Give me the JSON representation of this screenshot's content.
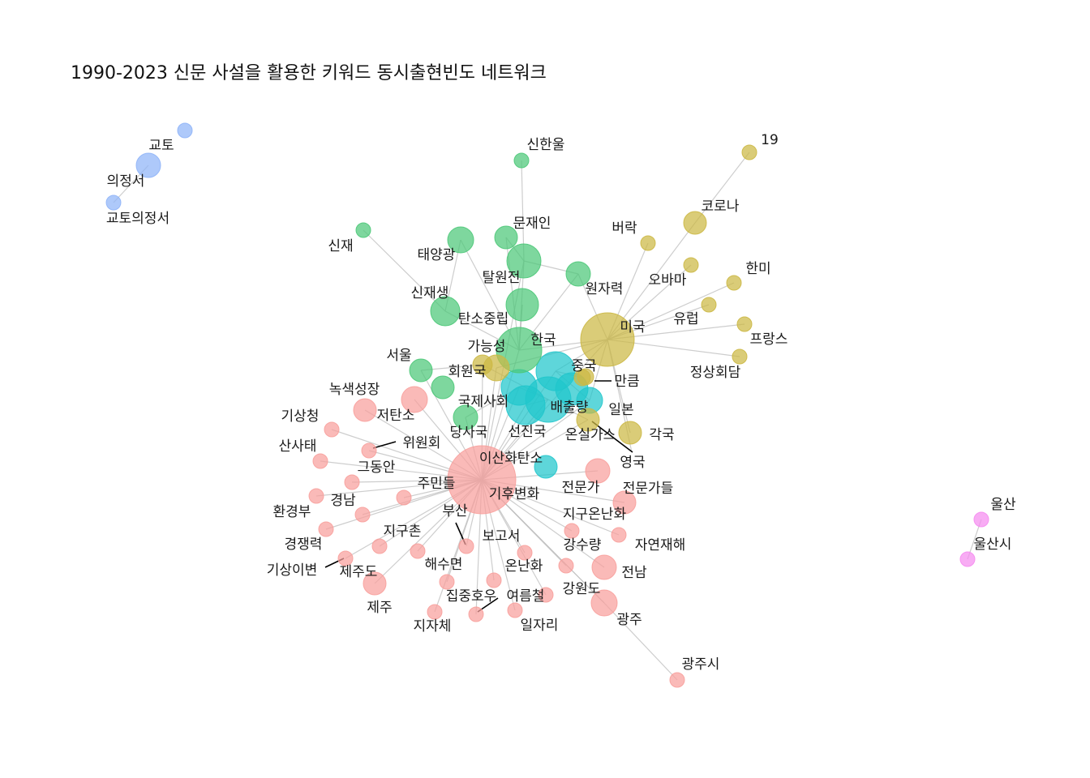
{
  "title": "1990-2023 신문 사설을 활용한 키워드 동시출현빈도 네트워크",
  "groups": {
    "pink": "#f8a09c",
    "green": "#4cc878",
    "olive": "#ccb844",
    "cyan": "#20c6cc",
    "blue": "#8fb4f8",
    "magenta": "#f58cf0"
  },
  "nodes": [
    {
      "id": "이산화탄소",
      "group": "pink"
    },
    {
      "id": "기후변화",
      "group": "pink"
    },
    {
      "id": "배출량",
      "group": "cyan"
    },
    {
      "id": "선진국",
      "group": "cyan"
    },
    {
      "id": "국제사회",
      "group": "cyan"
    },
    {
      "id": "중국",
      "group": "cyan"
    },
    {
      "id": "일본",
      "group": "cyan"
    },
    {
      "id": "한국",
      "group": "green"
    },
    {
      "id": "가능성",
      "group": "olive"
    },
    {
      "id": "회원국",
      "group": "olive"
    },
    {
      "id": "미국",
      "group": "olive"
    },
    {
      "id": "탈원전",
      "group": "green"
    },
    {
      "id": "탄소중립",
      "group": "green"
    },
    {
      "id": "문재인",
      "group": "green"
    },
    {
      "id": "태양광",
      "group": "green"
    },
    {
      "id": "신재생",
      "group": "green"
    },
    {
      "id": "원자력",
      "group": "green"
    },
    {
      "id": "신한울",
      "group": "green"
    },
    {
      "id": "신재",
      "group": "green"
    },
    {
      "id": "서울",
      "group": "green"
    },
    {
      "id": "당사국",
      "group": "green"
    },
    {
      "id": "코로나",
      "group": "olive"
    },
    {
      "id": "19",
      "group": "olive"
    },
    {
      "id": "버락",
      "group": "olive"
    },
    {
      "id": "오바마",
      "group": "olive"
    },
    {
      "id": "한미",
      "group": "olive"
    },
    {
      "id": "유럽",
      "group": "olive"
    },
    {
      "id": "프랑스",
      "group": "olive"
    },
    {
      "id": "정상회담",
      "group": "olive"
    },
    {
      "id": "만큼",
      "group": "olive"
    },
    {
      "id": "온실가스",
      "group": "olive"
    },
    {
      "id": "영국",
      "group": "olive"
    },
    {
      "id": "각국",
      "group": "olive"
    },
    {
      "id": "녹색성장",
      "group": "pink"
    },
    {
      "id": "저탄소",
      "group": "pink"
    },
    {
      "id": "기상청",
      "group": "pink"
    },
    {
      "id": "위원회",
      "group": "pink"
    },
    {
      "id": "산사태",
      "group": "pink"
    },
    {
      "id": "그동안",
      "group": "pink"
    },
    {
      "id": "주민들",
      "group": "pink"
    },
    {
      "id": "경남",
      "group": "pink"
    },
    {
      "id": "환경부",
      "group": "pink"
    },
    {
      "id": "경쟁력",
      "group": "pink"
    },
    {
      "id": "지구촌",
      "group": "pink"
    },
    {
      "id": "기상이변",
      "group": "pink"
    },
    {
      "id": "제주도",
      "group": "pink"
    },
    {
      "id": "제주",
      "group": "pink"
    },
    {
      "id": "부산",
      "group": "pink"
    },
    {
      "id": "해수면",
      "group": "pink"
    },
    {
      "id": "지자체",
      "group": "pink"
    },
    {
      "id": "집중호우",
      "group": "pink"
    },
    {
      "id": "보고서",
      "group": "pink"
    },
    {
      "id": "온난화",
      "group": "pink"
    },
    {
      "id": "여름철",
      "group": "pink"
    },
    {
      "id": "일자리",
      "group": "pink"
    },
    {
      "id": "전문가",
      "group": "pink"
    },
    {
      "id": "전문가들",
      "group": "pink"
    },
    {
      "id": "지구온난화",
      "group": "pink"
    },
    {
      "id": "강수량",
      "group": "pink"
    },
    {
      "id": "자연재해",
      "group": "pink"
    },
    {
      "id": "강원도",
      "group": "pink"
    },
    {
      "id": "전남",
      "group": "pink"
    },
    {
      "id": "광주",
      "group": "pink"
    },
    {
      "id": "광주시",
      "group": "pink"
    },
    {
      "id": "교토",
      "group": "blue"
    },
    {
      "id": "의정서",
      "group": "blue"
    },
    {
      "id": "교토의정서",
      "group": "blue"
    },
    {
      "id": "울산",
      "group": "magenta"
    },
    {
      "id": "울산시",
      "group": "magenta"
    }
  ],
  "edges": [
    [
      "이산화탄소",
      "기후변화"
    ],
    [
      "이산화탄소",
      "배출량"
    ],
    [
      "이산화탄소",
      "선진국"
    ],
    [
      "이산화탄소",
      "국제사회"
    ],
    [
      "이산화탄소",
      "중국"
    ],
    [
      "이산화탄소",
      "일본"
    ],
    [
      "이산화탄소",
      "한국"
    ],
    [
      "이산화탄소",
      "가능성"
    ],
    [
      "이산화탄소",
      "회원국"
    ],
    [
      "이산화탄소",
      "미국"
    ],
    [
      "이산화탄소",
      "온실가스"
    ],
    [
      "이산화탄소",
      "서울"
    ],
    [
      "이산화탄소",
      "당사국"
    ],
    [
      "이산화탄소",
      "녹색성장"
    ],
    [
      "이산화탄소",
      "저탄소"
    ],
    [
      "이산화탄소",
      "기상청"
    ],
    [
      "이산화탄소",
      "위원회"
    ],
    [
      "이산화탄소",
      "산사태"
    ],
    [
      "이산화탄소",
      "그동안"
    ],
    [
      "이산화탄소",
      "주민들"
    ],
    [
      "이산화탄소",
      "경남"
    ],
    [
      "이산화탄소",
      "환경부"
    ],
    [
      "이산화탄소",
      "경쟁력"
    ],
    [
      "이산화탄소",
      "지구촌"
    ],
    [
      "이산화탄소",
      "기상이변"
    ],
    [
      "이산화탄소",
      "제주도"
    ],
    [
      "이산화탄소",
      "제주"
    ],
    [
      "이산화탄소",
      "부산"
    ],
    [
      "이산화탄소",
      "해수면"
    ],
    [
      "이산화탄소",
      "지자체"
    ],
    [
      "이산화탄소",
      "집중호우"
    ],
    [
      "이산화탄소",
      "보고서"
    ],
    [
      "이산화탄소",
      "온난화"
    ],
    [
      "이산화탄소",
      "여름철"
    ],
    [
      "이산화탄소",
      "일자리"
    ],
    [
      "이산화탄소",
      "전문가"
    ],
    [
      "이산화탄소",
      "전문가들"
    ],
    [
      "이산화탄소",
      "지구온난화"
    ],
    [
      "이산화탄소",
      "강수량"
    ],
    [
      "이산화탄소",
      "자연재해"
    ],
    [
      "이산화탄소",
      "강원도"
    ],
    [
      "이산화탄소",
      "전남"
    ],
    [
      "이산화탄소",
      "광주"
    ],
    [
      "이산화탄소",
      "탈원전"
    ],
    [
      "광주",
      "광주시"
    ],
    [
      "한국",
      "탈원전"
    ],
    [
      "한국",
      "탄소중립"
    ],
    [
      "한국",
      "문재인"
    ],
    [
      "한국",
      "태양광"
    ],
    [
      "한국",
      "신재생"
    ],
    [
      "한국",
      "원자력"
    ],
    [
      "한국",
      "미국"
    ],
    [
      "탈원전",
      "신한울"
    ],
    [
      "탈원전",
      "문재인"
    ],
    [
      "탈원전",
      "원자력"
    ],
    [
      "신재생",
      "신재"
    ],
    [
      "신재생",
      "태양광"
    ],
    [
      "탄소중립",
      "한국"
    ],
    [
      "미국",
      "코로나"
    ],
    [
      "미국",
      "버락"
    ],
    [
      "미국",
      "오바마"
    ],
    [
      "미국",
      "한미"
    ],
    [
      "미국",
      "유럽"
    ],
    [
      "미국",
      "프랑스"
    ],
    [
      "미국",
      "정상회담"
    ],
    [
      "미국",
      "중국"
    ],
    [
      "미국",
      "일본"
    ],
    [
      "미국",
      "영국"
    ],
    [
      "미국",
      "각국"
    ],
    [
      "미국",
      "원자력"
    ],
    [
      "미국",
      "가능성"
    ],
    [
      "코로나",
      "19"
    ],
    [
      "중국",
      "만큼"
    ],
    [
      "중국",
      "일본"
    ],
    [
      "배출량",
      "선진국"
    ],
    [
      "배출량",
      "국제사회"
    ],
    [
      "배출량",
      "온실가스"
    ],
    [
      "배출량",
      "회원국"
    ],
    [
      "회원국",
      "서울"
    ],
    [
      "국제사회",
      "당사국"
    ],
    [
      "교토",
      "의정서"
    ],
    [
      "교토",
      "교토의정서"
    ],
    [
      "울산",
      "울산시"
    ]
  ]
}
